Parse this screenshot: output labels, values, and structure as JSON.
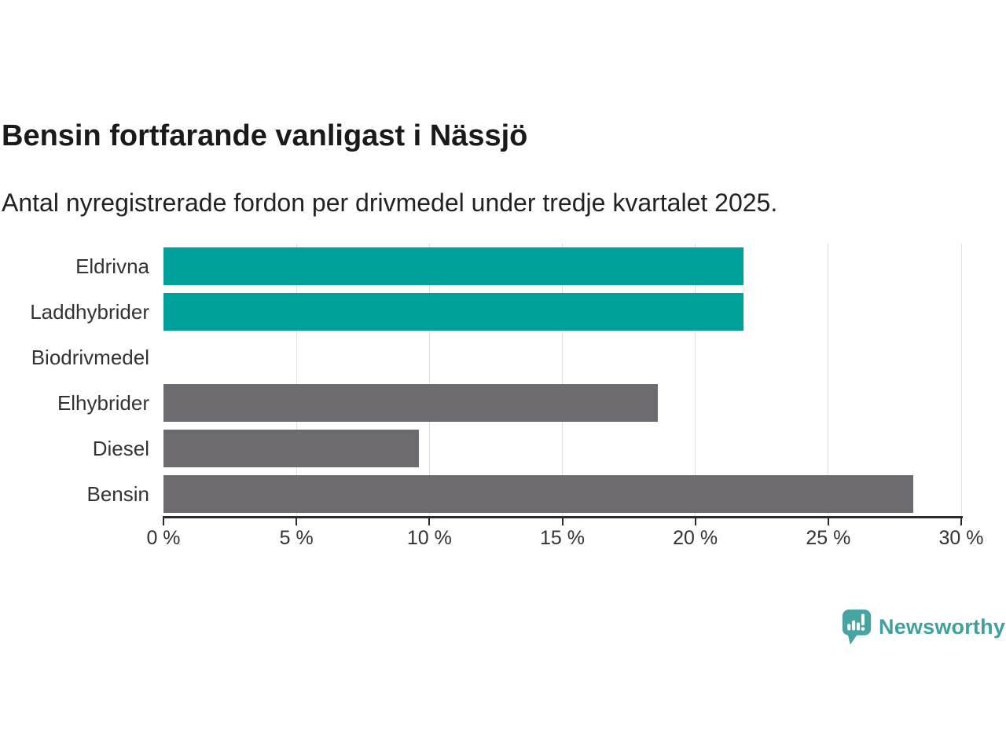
{
  "header": {
    "title": "Bensin fortfarande vanligast i Nässjö",
    "subtitle": "Antal nyregistrerade fordon per drivmedel under tredje kvartalet 2025."
  },
  "chart_data": {
    "type": "bar",
    "orientation": "horizontal",
    "title": "Bensin fortfarande vanligast i Nässjö",
    "subtitle": "Antal nyregistrerade fordon per drivmedel under tredje kvartalet 2025.",
    "categories": [
      "Eldrivna",
      "Laddhybrider",
      "Biodrivmedel",
      "Elhybrider",
      "Diesel",
      "Bensin"
    ],
    "values": [
      21.8,
      21.8,
      0,
      18.6,
      9.6,
      28.2
    ],
    "unit": "%",
    "bar_colors": [
      "#00a09a",
      "#00a09a",
      "#6e6b70",
      "#6e6b70",
      "#6e6b70",
      "#6e6b70"
    ],
    "highlight_color": "#00a09a",
    "default_color": "#6e6b70",
    "xlim": [
      0,
      30
    ],
    "x_ticks": [
      0,
      5,
      10,
      15,
      20,
      25,
      30
    ],
    "x_tick_labels": [
      "0 %",
      "5 %",
      "10 %",
      "15 %",
      "20 %",
      "25 %",
      "30 %"
    ],
    "grid": true,
    "gridline_color": "#e0e0e0",
    "axis_color": "#2b2b2b",
    "legend": false
  },
  "footer": {
    "logo_text": "Newsworthy",
    "logo_color": "#3fa09e",
    "logo_icon_color": "#47a4a2"
  }
}
